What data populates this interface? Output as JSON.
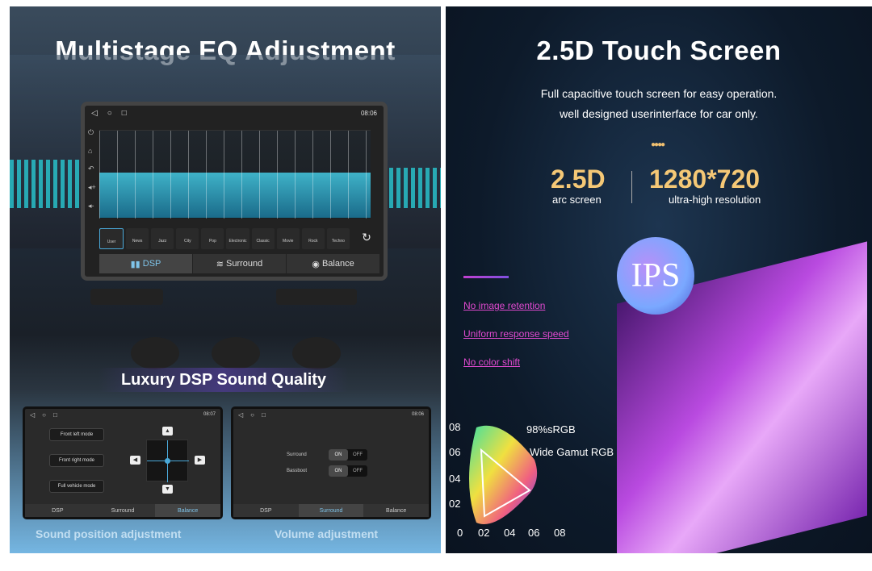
{
  "left_panel": {
    "title": "Multistage EQ Adjustment",
    "status_time": "08:06",
    "eq_presets": [
      "User",
      "News",
      "Jazz",
      "City",
      "Pop",
      "Electronic",
      "Classic",
      "Movie",
      "Rock",
      "Techno"
    ],
    "selected_preset": "User",
    "tabs": [
      "DSP",
      "Surround",
      "Balance"
    ],
    "active_tab": "DSP",
    "banner": "Luxury DSP Sound Quality",
    "mini_left": {
      "time": "08:07",
      "buttons": [
        "Front left mode",
        "Front right mode",
        "Full vehicle mode"
      ],
      "tabs": [
        "DSP",
        "Surround",
        "Balance"
      ],
      "active_tab": "Balance",
      "caption": "Sound position adjustment"
    },
    "mini_right": {
      "time": "08:06",
      "rows": [
        {
          "label": "Surround",
          "on": "ON",
          "off": "OFF"
        },
        {
          "label": "Bassboot",
          "on": "ON",
          "off": "OFF"
        }
      ],
      "tabs": [
        "DSP",
        "Surround",
        "Balance"
      ],
      "active_tab": "Surround",
      "caption": "Volume adjustment"
    }
  },
  "right_panel": {
    "title": "2.5D Touch Screen",
    "sub1": "Full capacitive touch screen for easy operation.",
    "sub2": "well designed userinterface for car only.",
    "spec1_value": "2.5D",
    "spec1_label": "arc screen",
    "spec2_value": "1280*720",
    "spec2_label": "ultra-high resolution",
    "badge": "IPS",
    "features": [
      "No image retention",
      "Uniform response speed",
      "No color shift"
    ],
    "gamut_label1": "98%sRGB",
    "gamut_label2": "Wide Gamut RGB",
    "y_ticks": [
      "08",
      "06",
      "04",
      "02"
    ],
    "x_ticks": [
      "0",
      "02",
      "04",
      "06",
      "08"
    ]
  }
}
